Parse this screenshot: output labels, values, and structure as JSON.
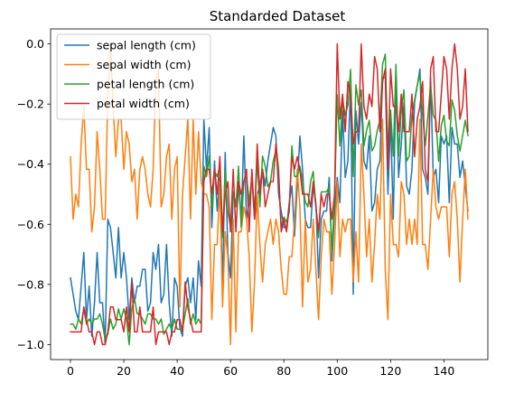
{
  "chart_data": {
    "type": "line",
    "title": "Standarded Dataset",
    "xlabel": "",
    "ylabel": "",
    "xlim": [
      -7.45,
      156.45
    ],
    "ylim": [
      -1.05,
      0.05
    ],
    "xticks": [
      0,
      20,
      40,
      60,
      80,
      100,
      120,
      140
    ],
    "yticks": [
      -1.0,
      -0.8,
      -0.6,
      -0.4,
      -0.2,
      0.0
    ],
    "ytick_labels": [
      "−1.0",
      "−0.8",
      "−0.6",
      "−0.4",
      "−0.2",
      "0.0"
    ],
    "grid": false,
    "legend_position": "top-left",
    "series": [
      {
        "name": "sepal length (cm)",
        "color": "#1f77b4",
        "values": [
          -0.778,
          -0.833,
          -0.889,
          -0.917,
          -0.806,
          -0.694,
          -0.917,
          -0.806,
          -0.972,
          -0.861,
          -0.694,
          -0.861,
          -0.861,
          -1.0,
          -0.583,
          -0.611,
          -0.694,
          -0.778,
          -0.611,
          -0.778,
          -0.694,
          -0.778,
          -0.917,
          -0.778,
          -0.861,
          -0.806,
          -0.806,
          -0.75,
          -0.75,
          -0.889,
          -0.861,
          -0.694,
          -0.75,
          -0.667,
          -0.861,
          -0.833,
          -0.667,
          -0.861,
          -0.972,
          -0.778,
          -0.806,
          -0.944,
          -0.972,
          -0.806,
          -0.778,
          -0.861,
          -0.778,
          -0.917,
          -0.722,
          -0.806,
          -0.25,
          -0.417,
          -0.278,
          -0.611,
          -0.389,
          -0.556,
          -0.444,
          -0.806,
          -0.361,
          -0.694,
          -0.778,
          -0.5,
          -0.528,
          -0.472,
          -0.583,
          -0.306,
          -0.583,
          -0.528,
          -0.444,
          -0.583,
          -0.5,
          -0.472,
          -0.417,
          -0.472,
          -0.389,
          -0.333,
          -0.278,
          -0.306,
          -0.5,
          -0.556,
          -0.611,
          -0.611,
          -0.528,
          -0.472,
          -0.639,
          -0.472,
          -0.306,
          -0.417,
          -0.583,
          -0.611,
          -0.611,
          -0.472,
          -0.528,
          -0.778,
          -0.583,
          -0.556,
          -0.556,
          -0.444,
          -0.722,
          -0.556,
          -0.444,
          -0.528,
          -0.222,
          -0.444,
          -0.389,
          -0.139,
          -0.833,
          -0.222,
          -0.333,
          -0.194,
          -0.389,
          -0.417,
          -0.306,
          -0.556,
          -0.528,
          -0.417,
          -0.389,
          -0.111,
          -0.111,
          -0.5,
          -0.25,
          -0.583,
          -0.111,
          -0.444,
          -0.333,
          -0.194,
          -0.472,
          -0.5,
          -0.417,
          -0.194,
          -0.139,
          -0.083,
          -0.417,
          -0.444,
          -0.5,
          -0.111,
          -0.444,
          -0.417,
          -0.528,
          -0.306,
          -0.333,
          -0.306,
          -0.528,
          -0.278,
          -0.333,
          -0.333,
          -0.444,
          -0.389,
          -0.472,
          -0.556
        ]
      },
      {
        "name": "sepal width (cm)",
        "color": "#ff7f0e",
        "values": [
          -0.375,
          -0.583,
          -0.5,
          -0.542,
          -0.333,
          -0.208,
          -0.417,
          -0.417,
          -0.625,
          -0.542,
          -0.292,
          -0.417,
          -0.583,
          -0.583,
          -0.167,
          -0.0,
          -0.208,
          -0.375,
          -0.25,
          -0.25,
          -0.417,
          -0.292,
          -0.333,
          -0.458,
          -0.417,
          -0.583,
          -0.417,
          -0.375,
          -0.417,
          -0.5,
          -0.542,
          -0.417,
          -0.125,
          -0.083,
          -0.542,
          -0.5,
          -0.375,
          -0.333,
          -0.583,
          -0.417,
          -0.375,
          -0.875,
          -0.5,
          -0.375,
          -0.25,
          -0.583,
          -0.25,
          -0.5,
          -0.292,
          -0.458,
          -0.5,
          -0.5,
          -0.542,
          -0.917,
          -0.667,
          -0.667,
          -0.458,
          -0.875,
          -0.625,
          -0.708,
          -1.0,
          -0.583,
          -0.958,
          -0.625,
          -0.625,
          -0.542,
          -0.583,
          -0.708,
          -0.958,
          -0.792,
          -0.5,
          -0.667,
          -0.792,
          -0.667,
          -0.625,
          -0.583,
          -0.667,
          -0.583,
          -0.625,
          -0.75,
          -0.833,
          -0.833,
          -0.708,
          -0.708,
          -0.583,
          -0.417,
          -0.542,
          -0.875,
          -0.583,
          -0.792,
          -0.75,
          -0.583,
          -0.75,
          -0.917,
          -0.708,
          -0.583,
          -0.625,
          -0.625,
          -0.833,
          -0.667,
          -0.458,
          -0.708,
          -0.583,
          -0.625,
          -0.583,
          -0.583,
          -0.792,
          -0.625,
          -0.792,
          -0.333,
          -0.5,
          -0.708,
          -0.583,
          -0.792,
          -0.667,
          -0.5,
          -0.583,
          -0.25,
          -0.75,
          -0.917,
          -0.5,
          -0.667,
          -0.667,
          -0.708,
          -0.458,
          -0.5,
          -0.667,
          -0.583,
          -0.667,
          -0.583,
          -0.667,
          -0.25,
          -0.667,
          -0.667,
          -0.75,
          -0.583,
          -0.417,
          -0.542,
          -0.583,
          -0.542,
          -0.542,
          -0.542,
          -0.708,
          -0.5,
          -0.458,
          -0.583,
          -0.792,
          -0.583,
          -0.417,
          -0.583
        ]
      },
      {
        "name": "petal length (cm)",
        "color": "#2ca02c",
        "values": [
          -0.932,
          -0.932,
          -0.949,
          -0.915,
          -0.932,
          -0.881,
          -0.932,
          -0.915,
          -0.932,
          -0.915,
          -0.915,
          -0.898,
          -0.932,
          -0.983,
          -0.966,
          -0.915,
          -0.949,
          -0.932,
          -0.881,
          -0.915,
          -0.881,
          -0.915,
          -1.0,
          -0.881,
          -0.847,
          -0.898,
          -0.898,
          -0.915,
          -0.932,
          -0.898,
          -0.898,
          -0.915,
          -0.915,
          -0.932,
          -0.915,
          -0.966,
          -0.949,
          -0.932,
          -0.949,
          -0.915,
          -0.949,
          -0.949,
          -0.949,
          -0.898,
          -0.847,
          -0.932,
          -0.898,
          -0.932,
          -0.915,
          -0.932,
          -0.407,
          -0.441,
          -0.373,
          -0.542,
          -0.424,
          -0.441,
          -0.407,
          -0.644,
          -0.424,
          -0.559,
          -0.61,
          -0.492,
          -0.542,
          -0.407,
          -0.61,
          -0.458,
          -0.441,
          -0.525,
          -0.441,
          -0.559,
          -0.39,
          -0.542,
          -0.373,
          -0.407,
          -0.475,
          -0.458,
          -0.39,
          -0.356,
          -0.441,
          -0.61,
          -0.576,
          -0.593,
          -0.559,
          -0.339,
          -0.441,
          -0.441,
          -0.407,
          -0.458,
          -0.525,
          -0.542,
          -0.458,
          -0.424,
          -0.542,
          -0.644,
          -0.492,
          -0.492,
          -0.492,
          -0.475,
          -0.695,
          -0.508,
          -0.169,
          -0.339,
          -0.186,
          -0.237,
          -0.203,
          -0.085,
          -0.441,
          -0.136,
          -0.203,
          -0.153,
          -0.339,
          -0.288,
          -0.254,
          -0.356,
          -0.339,
          -0.288,
          -0.254,
          -0.068,
          -0.034,
          -0.356,
          -0.22,
          -0.373,
          -0.068,
          -0.373,
          -0.22,
          -0.153,
          -0.39,
          -0.373,
          -0.237,
          -0.186,
          -0.136,
          -0.102,
          -0.237,
          -0.339,
          -0.237,
          -0.136,
          -0.237,
          -0.254,
          -0.39,
          -0.271,
          -0.237,
          -0.322,
          -0.339,
          -0.186,
          -0.22,
          -0.305,
          -0.356,
          -0.305,
          -0.254,
          -0.305
        ]
      },
      {
        "name": "petal width (cm)",
        "color": "#d62728",
        "values": [
          -0.958,
          -0.958,
          -0.958,
          -0.958,
          -0.958,
          -0.875,
          -0.917,
          -0.958,
          -0.958,
          -1.0,
          -0.958,
          -0.958,
          -1.0,
          -1.0,
          -0.958,
          -0.875,
          -0.875,
          -0.917,
          -0.917,
          -0.917,
          -0.958,
          -0.875,
          -0.958,
          -0.792,
          -0.958,
          -0.958,
          -0.875,
          -0.958,
          -0.958,
          -0.958,
          -0.958,
          -0.875,
          -1.0,
          -0.958,
          -0.958,
          -0.958,
          -0.958,
          -1.0,
          -0.958,
          -0.958,
          -0.917,
          -0.917,
          -0.958,
          -0.792,
          -0.875,
          -0.917,
          -0.958,
          -0.958,
          -0.958,
          -0.958,
          -0.458,
          -0.417,
          -0.417,
          -0.5,
          -0.417,
          -0.5,
          -0.375,
          -0.625,
          -0.5,
          -0.458,
          -0.625,
          -0.417,
          -0.625,
          -0.458,
          -0.5,
          -0.458,
          -0.417,
          -0.625,
          -0.417,
          -0.583,
          -0.333,
          -0.5,
          -0.417,
          -0.542,
          -0.5,
          -0.458,
          -0.458,
          -0.333,
          -0.417,
          -0.625,
          -0.583,
          -0.625,
          -0.542,
          -0.375,
          -0.417,
          -0.375,
          -0.417,
          -0.5,
          -0.5,
          -0.5,
          -0.542,
          -0.458,
          -0.542,
          -0.625,
          -0.5,
          -0.542,
          -0.5,
          -0.5,
          -0.583,
          -0.5,
          0.0,
          -0.25,
          -0.167,
          -0.292,
          -0.125,
          -0.167,
          -0.333,
          -0.292,
          -0.292,
          0.0,
          -0.208,
          -0.25,
          -0.167,
          -0.208,
          -0.042,
          -0.083,
          -0.292,
          -0.125,
          -0.083,
          -0.417,
          -0.083,
          -0.208,
          -0.208,
          -0.292,
          -0.167,
          -0.292,
          -0.292,
          -0.292,
          -0.167,
          -0.375,
          -0.25,
          -0.208,
          -0.125,
          -0.417,
          -0.458,
          -0.083,
          -0.042,
          -0.292,
          -0.292,
          -0.167,
          -0.042,
          -0.083,
          -0.25,
          -0.083,
          0.0,
          -0.083,
          -0.25,
          -0.208,
          -0.083,
          -0.292
        ]
      }
    ]
  }
}
